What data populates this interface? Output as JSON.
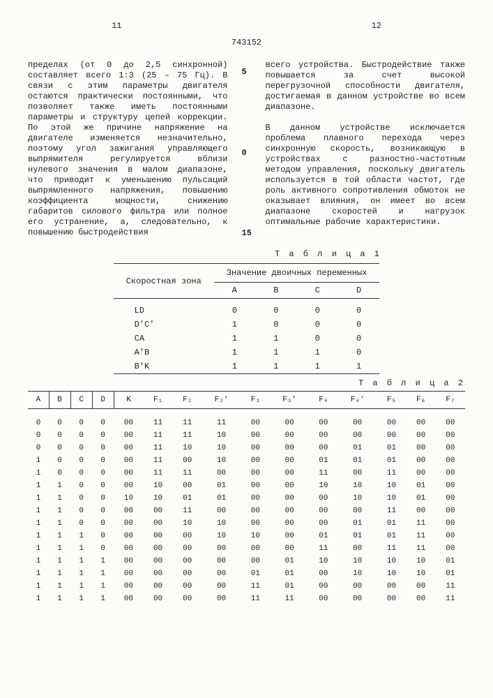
{
  "page_left": "11",
  "page_right": "12",
  "doc_id": "743152",
  "line5": "5",
  "line10": "0",
  "line15": "15",
  "col_left": "пределах (от 0 до 2,5 синхронной) составляет всего 1:3 (25 – 75 Гц). В связи с этим параметры двигателя остаются практически постоянными, что позволяет также иметь постоянными параметры и структуру цепей коррекции. По этой же причине напряжение на двигателе изменяется незначительно, поэтому угол зажигания управляющего выпрямителя регулируется вблизи нулевого значения в малом диапазоне, что приводит к уменьшению пульсаций выпрямленного напряжения, повышению коэффициента мощности, снижению габаритов силового фильтра или полное его устранение, а, следовательно, к повышению быстродействия",
  "col_right_p1": "всего устройства. Быстродействие также повышается за счет высокой перегрузочной способности двигателя, достигаемая в данном устройстве во всем диапазоне.",
  "col_right_p2": "В данном устройстве исключается проблема плавного перехода через синхронную скорость, возникающую в устройствах с разностно-частотным методом управления, поскольку двигатель используется в той области частот, где роль активного сопротивления обмоток не оказывает влияния, он имеет во всем диапазоне скоростей и нагрузок оптимальные рабочие характеристики.",
  "table1_label": "Т а б л и ц а 1",
  "t1_header_zone": "Скоростная зона",
  "t1_header_values": "Значение двоичных переменных",
  "t1_cols": [
    "A",
    "B",
    "C",
    "D"
  ],
  "t1_rows": [
    {
      "label": "LD",
      "v": [
        "0",
        "0",
        "0",
        "0"
      ]
    },
    {
      "label": "D'C'",
      "v": [
        "1",
        "0",
        "0",
        "0"
      ]
    },
    {
      "label": "CA",
      "v": [
        "1",
        "1",
        "0",
        "0"
      ]
    },
    {
      "label": "A'B",
      "v": [
        "1",
        "1",
        "1",
        "0"
      ]
    },
    {
      "label": "B'K",
      "v": [
        "1",
        "1",
        "1",
        "1"
      ]
    }
  ],
  "table2_label": "Т а б л и ц а 2",
  "t2_cols": [
    "A",
    "B",
    "C",
    "D",
    "K",
    "F₁",
    "F₂",
    "F₂'",
    "F₃",
    "F₃'",
    "F₄",
    "F₄'",
    "F₅",
    "F₆",
    "F₇"
  ],
  "t2_rows": [
    [
      "0",
      "0",
      "0",
      "0",
      "00",
      "11",
      "11",
      "11",
      "00",
      "00",
      "00",
      "00",
      "00",
      "00",
      "00"
    ],
    [
      "0",
      "0",
      "0",
      "0",
      "00",
      "11",
      "11",
      "10",
      "00",
      "00",
      "00",
      "00",
      "00",
      "00",
      "00"
    ],
    [
      "0",
      "0",
      "0",
      "0",
      "00",
      "11",
      "10",
      "10",
      "00",
      "00",
      "00",
      "01",
      "01",
      "00",
      "00"
    ],
    [
      "1",
      "0",
      "0",
      "0",
      "00",
      "11",
      "00",
      "10",
      "00",
      "00",
      "01",
      "01",
      "01",
      "00",
      "00"
    ],
    [
      "1",
      "0",
      "0",
      "0",
      "00",
      "11",
      "11",
      "00",
      "00",
      "00",
      "11",
      "00",
      "11",
      "00",
      "00"
    ],
    [
      "1",
      "1",
      "0",
      "0",
      "00",
      "10",
      "00",
      "01",
      "00",
      "00",
      "10",
      "10",
      "10",
      "01",
      "00"
    ],
    [
      "1",
      "1",
      "0",
      "0",
      "10",
      "10",
      "01",
      "01",
      "00",
      "00",
      "00",
      "10",
      "10",
      "01",
      "00"
    ],
    [
      "1",
      "1",
      "0",
      "0",
      "00",
      "00",
      "11",
      "00",
      "00",
      "00",
      "00",
      "00",
      "11",
      "00",
      "00"
    ],
    [
      "1",
      "1",
      "0",
      "0",
      "00",
      "00",
      "10",
      "10",
      "00",
      "00",
      "00",
      "01",
      "01",
      "11",
      "00"
    ],
    [
      "1",
      "1",
      "1",
      "0",
      "00",
      "00",
      "00",
      "10",
      "10",
      "00",
      "01",
      "01",
      "01",
      "11",
      "00"
    ],
    [
      "1",
      "1",
      "1",
      "0",
      "00",
      "00",
      "00",
      "00",
      "00",
      "00",
      "11",
      "00",
      "11",
      "11",
      "00"
    ],
    [
      "1",
      "1",
      "1",
      "1",
      "00",
      "00",
      "00",
      "00",
      "00",
      "01",
      "10",
      "10",
      "10",
      "10",
      "01"
    ],
    [
      "1",
      "1",
      "1",
      "1",
      "00",
      "00",
      "00",
      "00",
      "01",
      "01",
      "00",
      "10",
      "10",
      "10",
      "01"
    ],
    [
      "1",
      "1",
      "1",
      "1",
      "00",
      "00",
      "00",
      "00",
      "11",
      "01",
      "00",
      "00",
      "00",
      "00",
      "11"
    ],
    [
      "1",
      "1",
      "1",
      "1",
      "00",
      "00",
      "00",
      "00",
      "11",
      "11",
      "00",
      "00",
      "00",
      "00",
      "11"
    ]
  ]
}
